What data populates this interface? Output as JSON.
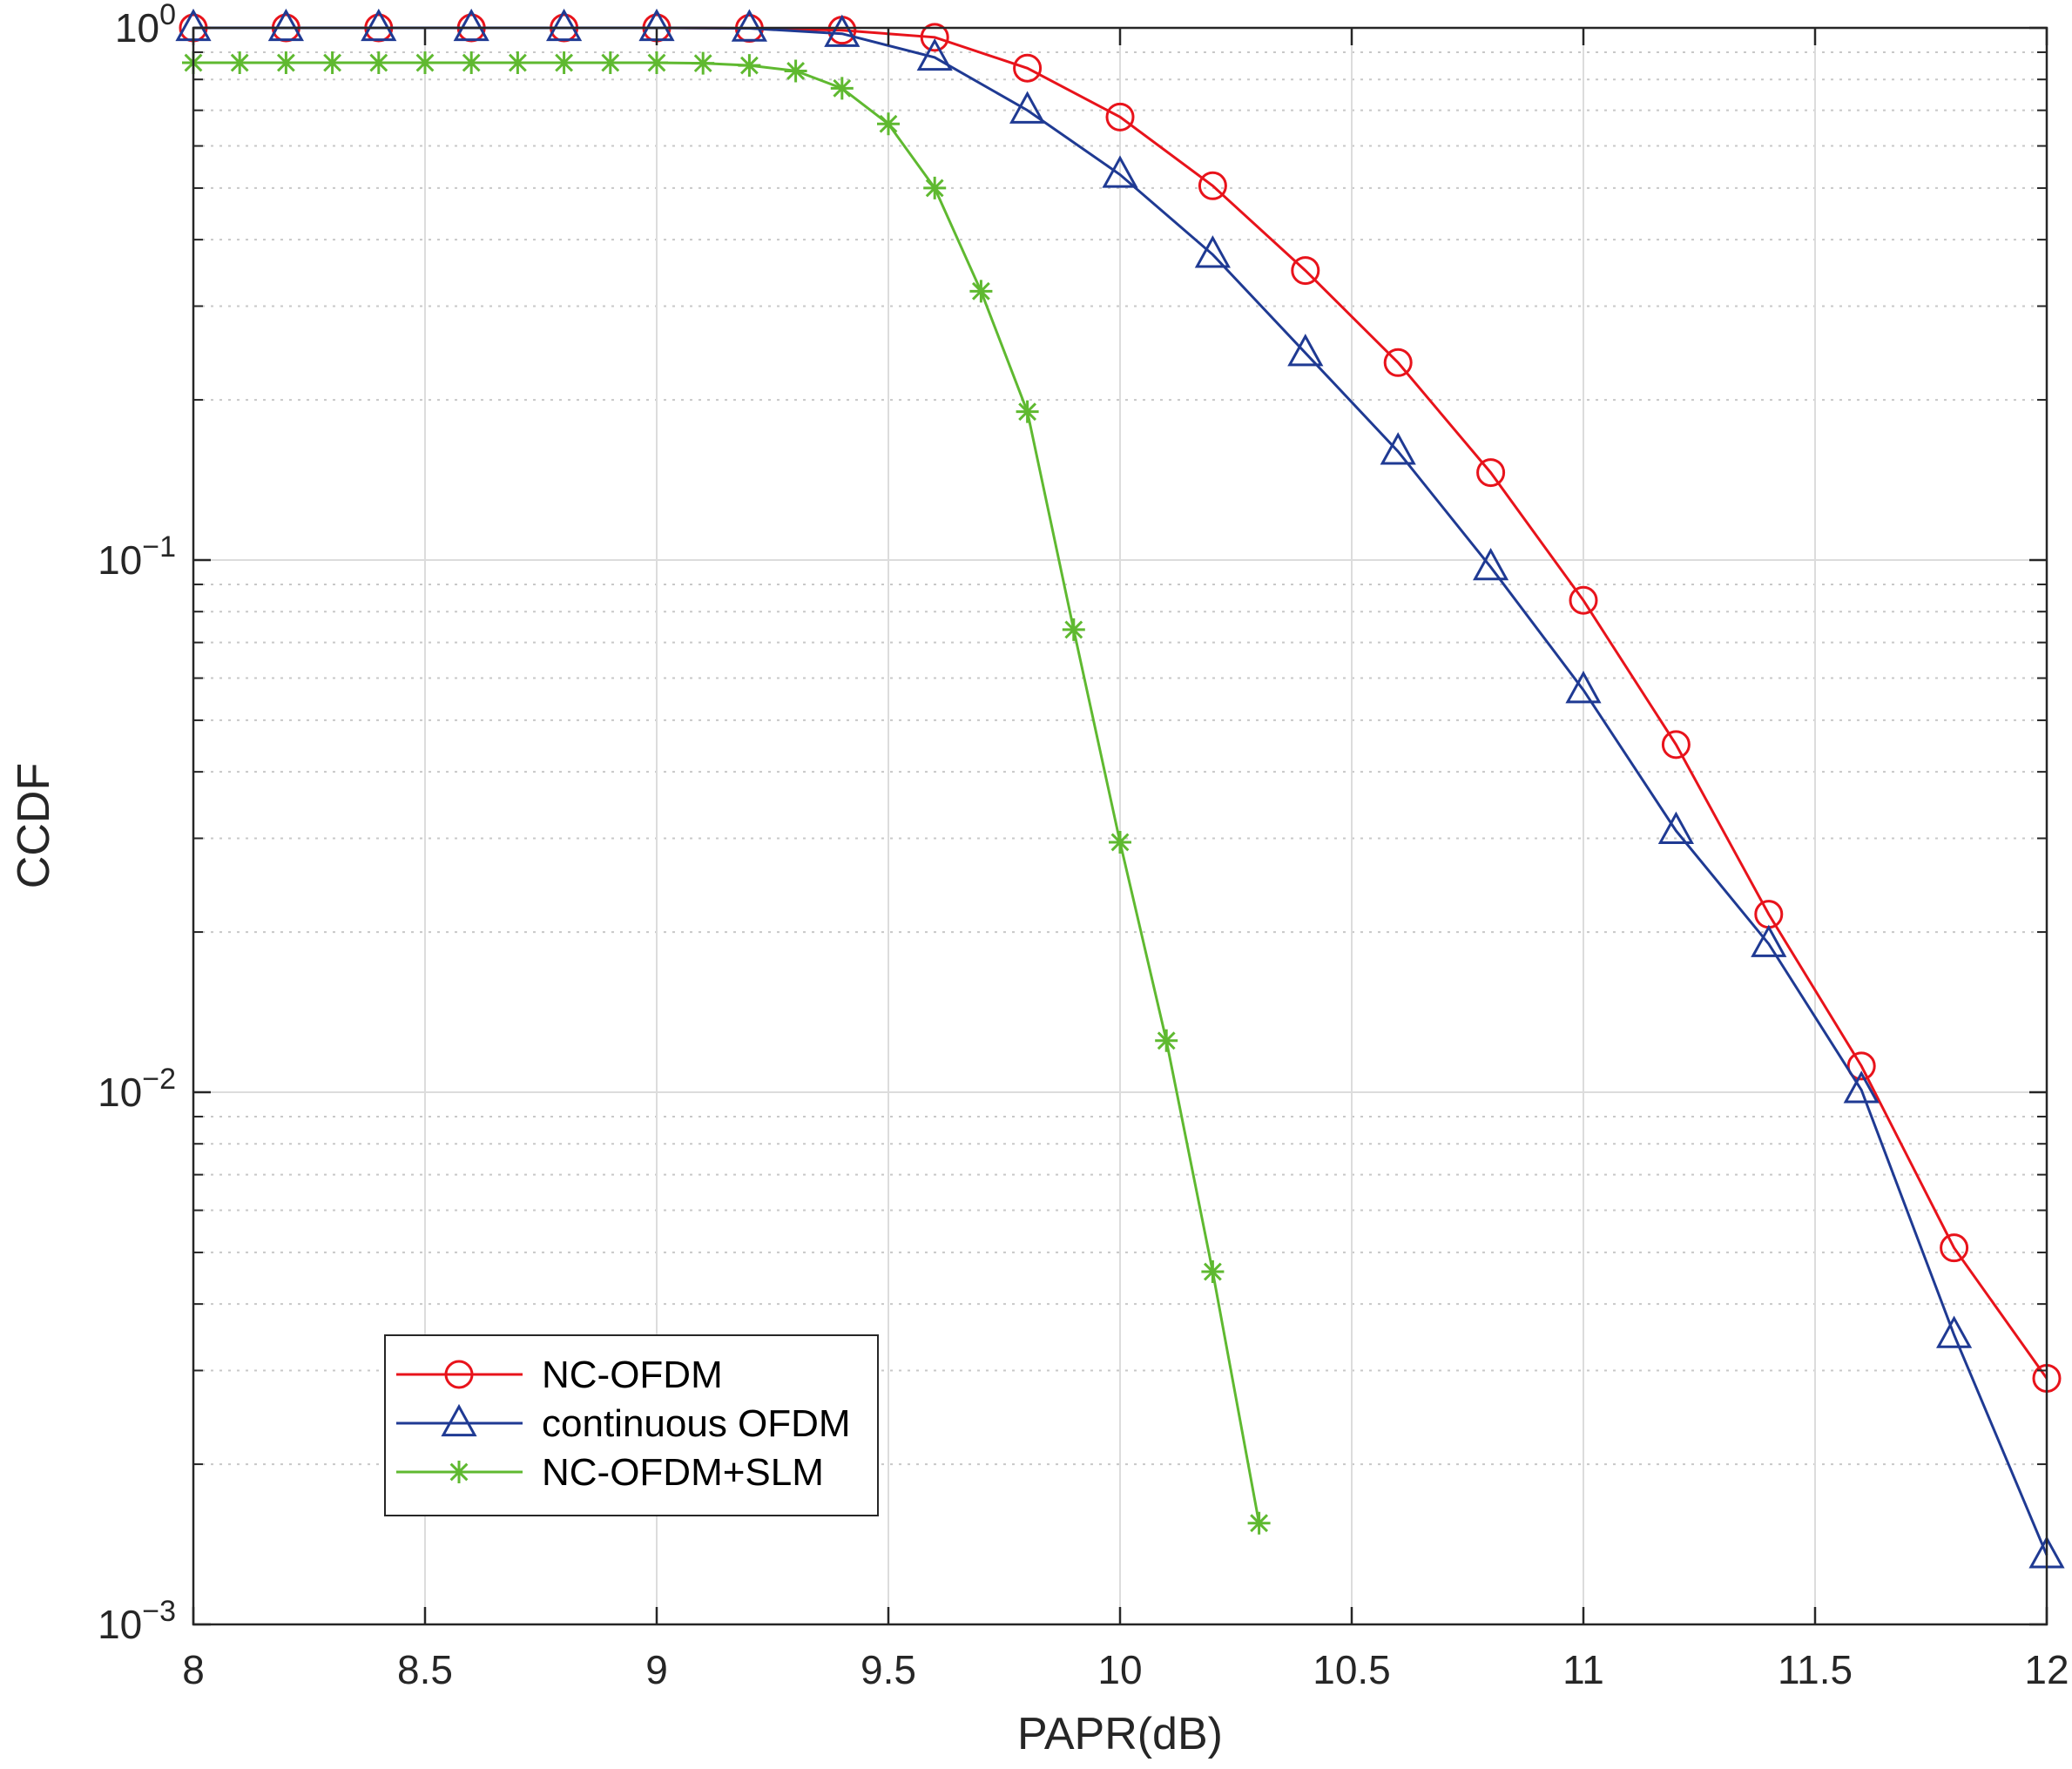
{
  "chart_data": {
    "type": "line",
    "xlabel": "PAPR(dB)",
    "ylabel": "CCDF",
    "xlim": [
      8,
      12
    ],
    "ylim": [
      0.001,
      1
    ],
    "yscale": "log",
    "grid": true,
    "legend_position": "lower-left",
    "x_ticks": [
      8,
      8.5,
      9,
      9.5,
      10,
      10.5,
      11,
      11.5,
      12
    ],
    "x_tick_labels": [
      "8",
      "8.5",
      "9",
      "9.5",
      "10",
      "10.5",
      "11",
      "11.5",
      "12"
    ],
    "y_ticks": [
      {
        "value": 1,
        "base": "10",
        "exp": "0"
      },
      {
        "value": 0.1,
        "base": "10",
        "exp": "−1"
      },
      {
        "value": 0.01,
        "base": "10",
        "exp": "−2"
      },
      {
        "value": 0.001,
        "base": "10",
        "exp": "−3"
      }
    ],
    "series": [
      {
        "name": "NC-OFDM",
        "color": "#e8131b",
        "marker": "circle",
        "x": [
          8,
          8.2,
          8.4,
          8.6,
          8.8,
          9,
          9.2,
          9.4,
          9.6,
          9.8,
          10,
          10.2,
          10.4,
          10.6,
          10.8,
          11,
          11.2,
          11.4,
          11.6,
          11.8,
          12
        ],
        "y": [
          1,
          1,
          1,
          1,
          1,
          1,
          0.998,
          0.99,
          0.96,
          0.84,
          0.68,
          0.505,
          0.35,
          0.235,
          0.146,
          0.084,
          0.045,
          0.0216,
          0.0112,
          0.0051,
          0.0029
        ]
      },
      {
        "name": "continuous OFDM",
        "color": "#1f3a93",
        "marker": "triangle",
        "x": [
          8,
          8.2,
          8.4,
          8.6,
          8.8,
          9,
          9.2,
          9.4,
          9.6,
          9.8,
          10,
          10.2,
          10.4,
          10.6,
          10.8,
          11,
          11.2,
          11.4,
          11.6,
          11.8,
          12
        ],
        "y": [
          1,
          1,
          1,
          1,
          1,
          1,
          0.998,
          0.975,
          0.88,
          0.7,
          0.53,
          0.375,
          0.245,
          0.16,
          0.097,
          0.057,
          0.031,
          0.019,
          0.0101,
          0.0035,
          0.00135
        ]
      },
      {
        "name": "NC-OFDM+SLM",
        "color": "#5fb930",
        "marker": "star",
        "x": [
          8,
          8.1,
          8.2,
          8.3,
          8.4,
          8.5,
          8.6,
          8.7,
          8.8,
          8.9,
          9,
          9.1,
          9.2,
          9.3,
          9.4,
          9.5,
          9.6,
          9.7,
          9.8,
          9.9,
          10,
          10.1,
          10.2,
          10.3
        ],
        "y": [
          0.86,
          0.86,
          0.86,
          0.86,
          0.86,
          0.86,
          0.86,
          0.86,
          0.86,
          0.86,
          0.86,
          0.858,
          0.85,
          0.83,
          0.77,
          0.66,
          0.5,
          0.32,
          0.19,
          0.074,
          0.0295,
          0.0125,
          0.0046,
          0.00155
        ]
      }
    ]
  }
}
